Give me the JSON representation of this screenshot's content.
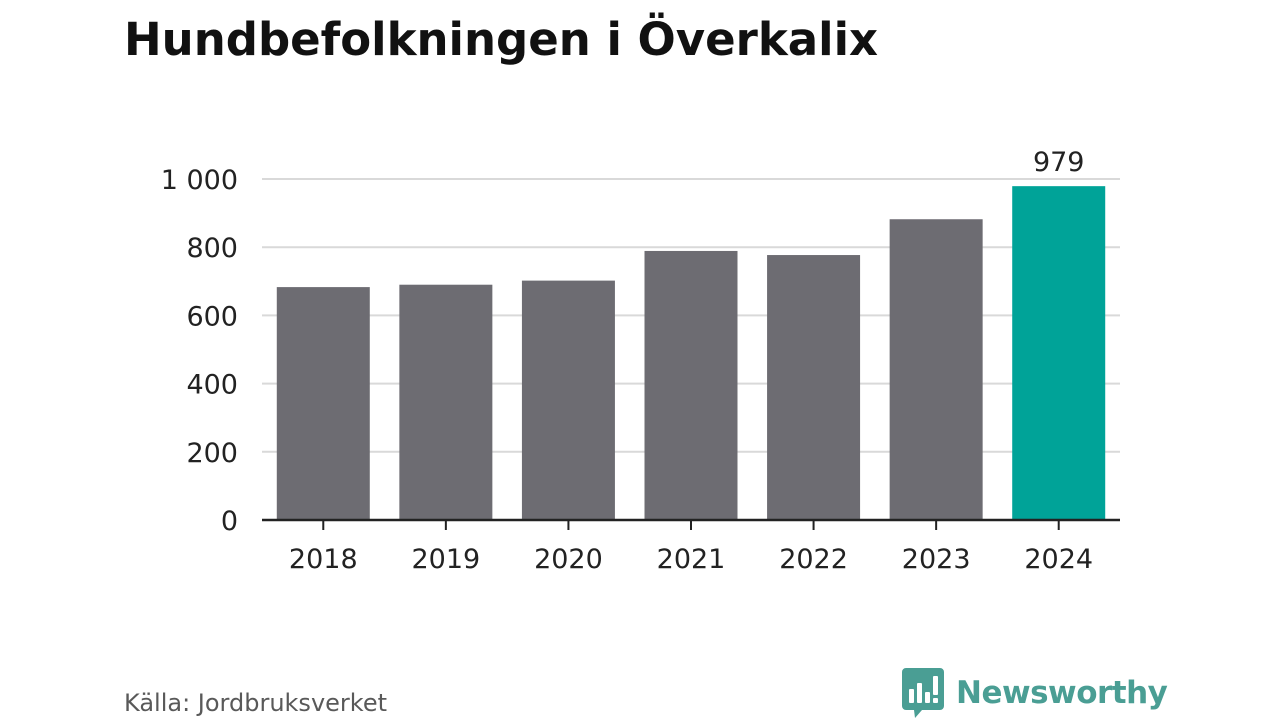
{
  "title": "Hundbefolkningen i Överkalix",
  "source": "Källa: Jordbruksverket",
  "brand": {
    "name": "Newsworthy",
    "icon": "newsworthy-logo-icon",
    "color": "#4a9e94"
  },
  "colors": {
    "bar": "#6d6c72",
    "highlight": "#00a398",
    "grid": "#d9d9d9",
    "axis": "#222222",
    "text": "#222222"
  },
  "chart_data": {
    "type": "bar",
    "categories": [
      "2018",
      "2019",
      "2020",
      "2021",
      "2022",
      "2023",
      "2024"
    ],
    "values": [
      683,
      690,
      702,
      789,
      777,
      882,
      979
    ],
    "highlight_index": 6,
    "data_labels": [
      {
        "index": 6,
        "text": "979"
      }
    ],
    "ylim": [
      0,
      1000
    ],
    "yticks": [
      0,
      200,
      400,
      600,
      800,
      1000
    ],
    "ytick_labels": [
      "0",
      "200",
      "400",
      "600",
      "800",
      "1 000"
    ],
    "grid": true,
    "xlabel": "",
    "ylabel": ""
  }
}
